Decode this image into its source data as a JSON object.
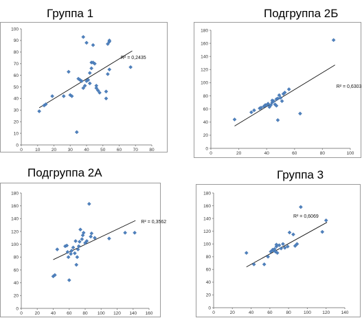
{
  "chart_data": [
    {
      "type": "scatter",
      "title": "Группа 1",
      "r2_label": "R² = 0,2435",
      "xlim": [
        0,
        80
      ],
      "ylim": [
        0,
        100
      ],
      "xticks": [
        0,
        10,
        20,
        30,
        40,
        50,
        60,
        70,
        80
      ],
      "yticks": [
        0,
        10,
        20,
        30,
        40,
        50,
        60,
        70,
        80,
        90,
        100
      ],
      "trendline": [
        [
          11,
          32
        ],
        [
          68,
          81
        ]
      ],
      "points": [
        [
          11,
          29
        ],
        [
          14,
          34
        ],
        [
          15,
          35
        ],
        [
          19,
          42
        ],
        [
          26,
          42
        ],
        [
          29,
          63
        ],
        [
          30,
          43
        ],
        [
          31,
          42
        ],
        [
          34,
          11
        ],
        [
          35,
          57
        ],
        [
          36,
          56
        ],
        [
          37,
          55
        ],
        [
          38,
          49
        ],
        [
          38,
          93
        ],
        [
          39,
          51
        ],
        [
          40,
          55
        ],
        [
          40,
          88
        ],
        [
          41,
          56
        ],
        [
          42,
          53
        ],
        [
          42,
          62
        ],
        [
          43,
          66
        ],
        [
          43,
          71
        ],
        [
          44,
          71
        ],
        [
          44,
          86
        ],
        [
          45,
          70
        ],
        [
          46,
          51
        ],
        [
          46,
          49
        ],
        [
          47,
          47
        ],
        [
          48,
          45
        ],
        [
          52,
          40
        ],
        [
          52,
          46
        ],
        [
          53,
          61
        ],
        [
          53,
          87
        ],
        [
          54,
          65
        ],
        [
          54,
          89
        ],
        [
          54,
          90
        ],
        [
          67,
          67
        ]
      ]
    },
    {
      "type": "scatter",
      "title": "Подгруппа 2Б",
      "r2_label": "R² = 0,6303",
      "xlim": [
        0,
        100
      ],
      "ylim": [
        0,
        180
      ],
      "xticks": [
        0,
        20,
        40,
        60,
        80,
        100
      ],
      "yticks": [
        0,
        20,
        40,
        60,
        80,
        100,
        120,
        140,
        160,
        180
      ],
      "trendline": [
        [
          17,
          34
        ],
        [
          89,
          127
        ]
      ],
      "points": [
        [
          17,
          44
        ],
        [
          29,
          55
        ],
        [
          31,
          58
        ],
        [
          35,
          61
        ],
        [
          36,
          62
        ],
        [
          38,
          64
        ],
        [
          39,
          66
        ],
        [
          40,
          66
        ],
        [
          41,
          68
        ],
        [
          42,
          63
        ],
        [
          43,
          66
        ],
        [
          44,
          70
        ],
        [
          44,
          73
        ],
        [
          45,
          72
        ],
        [
          46,
          67
        ],
        [
          47,
          65
        ],
        [
          47,
          75
        ],
        [
          48,
          43
        ],
        [
          48,
          76
        ],
        [
          49,
          81
        ],
        [
          50,
          77
        ],
        [
          51,
          72
        ],
        [
          52,
          83
        ],
        [
          53,
          85
        ],
        [
          56,
          90
        ],
        [
          64,
          53
        ],
        [
          88,
          165
        ]
      ]
    },
    {
      "type": "scatter",
      "title": "Подгруппа 2А",
      "r2_label": "R² = 0,3562",
      "xlim": [
        0,
        160
      ],
      "ylim": [
        0,
        180
      ],
      "xticks": [
        0,
        20,
        40,
        60,
        80,
        100,
        120,
        140,
        160
      ],
      "yticks": [
        0,
        20,
        40,
        60,
        80,
        100,
        120,
        140,
        160,
        180
      ],
      "trendline": [
        [
          40,
          76
        ],
        [
          143,
          137
        ]
      ],
      "points": [
        [
          40,
          50
        ],
        [
          42,
          52
        ],
        [
          45,
          92
        ],
        [
          55,
          97
        ],
        [
          57,
          98
        ],
        [
          58,
          88
        ],
        [
          59,
          80
        ],
        [
          60,
          44
        ],
        [
          62,
          85
        ],
        [
          63,
          90
        ],
        [
          65,
          95
        ],
        [
          67,
          86
        ],
        [
          68,
          105
        ],
        [
          69,
          68
        ],
        [
          70,
          80
        ],
        [
          71,
          92
        ],
        [
          72,
          97
        ],
        [
          73,
          104
        ],
        [
          74,
          123
        ],
        [
          76,
          108
        ],
        [
          77,
          114
        ],
        [
          78,
          118
        ],
        [
          80,
          102
        ],
        [
          82,
          105
        ],
        [
          85,
          163
        ],
        [
          87,
          112
        ],
        [
          88,
          117
        ],
        [
          92,
          110
        ],
        [
          110,
          109
        ],
        [
          130,
          118
        ],
        [
          142,
          118
        ]
      ]
    },
    {
      "type": "scatter",
      "title": "Группа 3",
      "r2_label": "R² = 0,6069",
      "xlim": [
        0,
        140
      ],
      "ylim": [
        0,
        180
      ],
      "xticks": [
        0,
        20,
        40,
        60,
        80,
        100,
        120,
        140
      ],
      "yticks": [
        0,
        20,
        40,
        60,
        80,
        100,
        120,
        140,
        160,
        180
      ],
      "trendline": [
        [
          35,
          64
        ],
        [
          121,
          134
        ]
      ],
      "points": [
        [
          35,
          86
        ],
        [
          43,
          68
        ],
        [
          54,
          68
        ],
        [
          58,
          80
        ],
        [
          61,
          88
        ],
        [
          63,
          91
        ],
        [
          64,
          90
        ],
        [
          65,
          92
        ],
        [
          66,
          88
        ],
        [
          67,
          96
        ],
        [
          67,
          99
        ],
        [
          68,
          86
        ],
        [
          70,
          98
        ],
        [
          72,
          93
        ],
        [
          74,
          100
        ],
        [
          76,
          94
        ],
        [
          79,
          96
        ],
        [
          81,
          118
        ],
        [
          85,
          115
        ],
        [
          87,
          97
        ],
        [
          89,
          100
        ],
        [
          93,
          158
        ],
        [
          116,
          119
        ],
        [
          120,
          137
        ]
      ]
    }
  ]
}
